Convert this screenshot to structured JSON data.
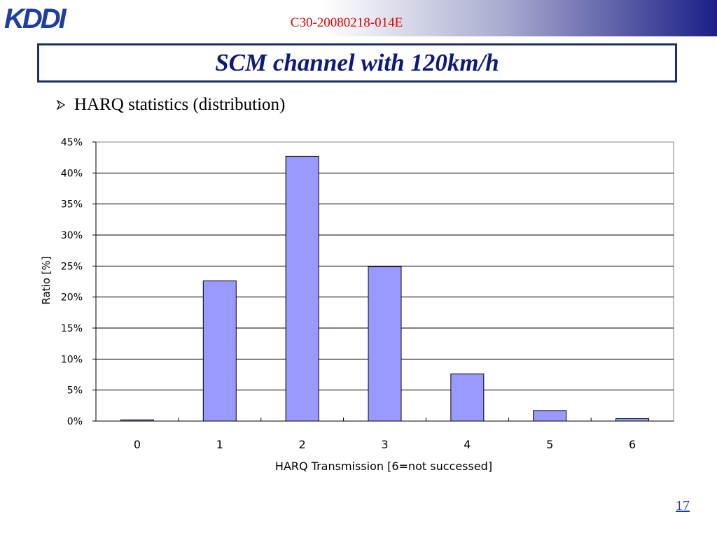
{
  "header": {
    "logo_text": "KDDI",
    "doc_id": "C30-20080218-014E",
    "title": "SCM channel with 120km/h"
  },
  "bullet": {
    "icon": "arrow-bullet-icon",
    "text": "HARQ statistics (distribution)"
  },
  "page_number": "17",
  "colors": {
    "bar": "#9999ff",
    "title": "#0c1a7a",
    "doc_id": "#e00000",
    "border": "#1c2f6b"
  },
  "chart_data": {
    "type": "bar",
    "categories": [
      "0",
      "1",
      "2",
      "3",
      "4",
      "5",
      "6"
    ],
    "values": [
      0.2,
      22.6,
      42.7,
      24.9,
      7.6,
      1.7,
      0.4
    ],
    "xlabel": "HARQ Transmission [6=not successed]",
    "ylabel": "Ratio [%]",
    "ylim": [
      0,
      45
    ],
    "yticks": [
      "0%",
      "5%",
      "10%",
      "15%",
      "20%",
      "25%",
      "30%",
      "35%",
      "40%",
      "45%"
    ],
    "grid": true,
    "legend": "none"
  }
}
